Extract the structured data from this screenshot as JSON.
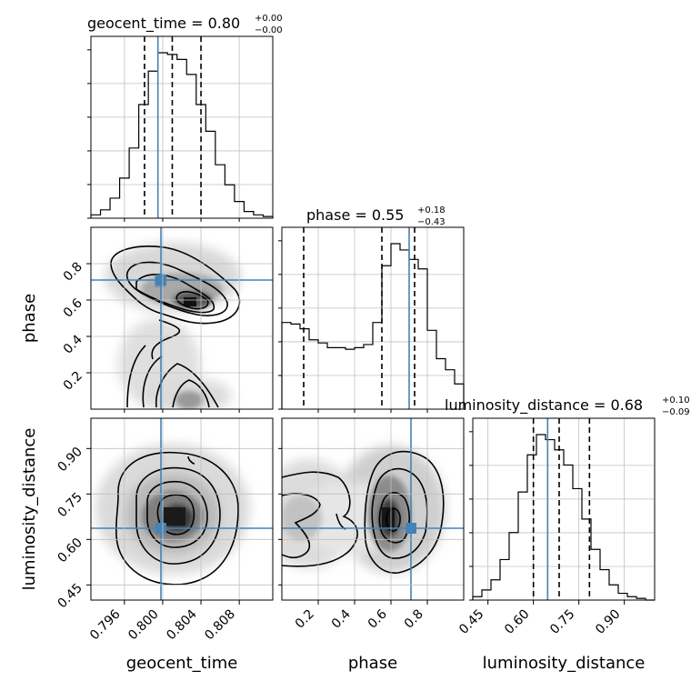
{
  "chart_data": {
    "type": "corner",
    "parameters": [
      "geocent_time",
      "phase",
      "luminosity_distance"
    ],
    "truths": {
      "geocent_time": 0.7995,
      "phase": 0.7,
      "luminosity_distance": 0.647
    },
    "colors": {
      "truth": "#4682b4",
      "line": "#000000",
      "grid": "#c0c0c0"
    },
    "panels": [
      {
        "type": "histogram",
        "param": "geocent_time",
        "title": {
          "name": "geocent_time",
          "median": "0.80",
          "plus": "+0.00",
          "minus": "−0.00"
        },
        "xlim": [
          0.7925,
          0.8115
        ],
        "counts": [
          2,
          5,
          12,
          24,
          42,
          68,
          88,
          99,
          98,
          95,
          86,
          68,
          52,
          32,
          20,
          10,
          4,
          2,
          1
        ],
        "quantiles": [
          0.7981,
          0.801,
          0.804
        ],
        "truth": 0.7995
      },
      {
        "type": "histogram",
        "param": "phase",
        "title": {
          "name": "phase",
          "median": "0.55",
          "plus": "+0.18",
          "minus": "−0.43"
        },
        "xlim": [
          0.0,
          1.0
        ],
        "counts": [
          55,
          54,
          51,
          44,
          42,
          39,
          39,
          38,
          39,
          41,
          55,
          91,
          105,
          101,
          95,
          89,
          50,
          32,
          25,
          16
        ],
        "quantiles": [
          0.12,
          0.55,
          0.73
        ],
        "truth": 0.7
      },
      {
        "type": "histogram",
        "param": "luminosity_distance",
        "title": {
          "name": "luminosity_distance",
          "median": "0.68",
          "plus": "+0.10",
          "minus": "−0.09"
        },
        "xlim": [
          0.4,
          1.0
        ],
        "counts": [
          2,
          6,
          12,
          24,
          40,
          64,
          86,
          98,
          95,
          89,
          80,
          66,
          48,
          30,
          18,
          9,
          4,
          2,
          1,
          0
        ],
        "quantiles": [
          0.6,
          0.685,
          0.785
        ],
        "truth": 0.647
      },
      {
        "type": "contour2d",
        "x": "geocent_time",
        "y": "phase",
        "xlim": [
          0.7925,
          0.8115
        ],
        "ylim": [
          0.0,
          1.0
        ],
        "truth": [
          0.7995,
          0.7
        ]
      },
      {
        "type": "contour2d",
        "x": "geocent_time",
        "y": "luminosity_distance",
        "xlim": [
          0.7925,
          0.8115
        ],
        "ylim": [
          0.4,
          1.0
        ],
        "truth": [
          0.7995,
          0.647
        ]
      },
      {
        "type": "contour2d",
        "x": "phase",
        "y": "luminosity_distance",
        "xlim": [
          0.0,
          1.0
        ],
        "ylim": [
          0.4,
          1.0
        ],
        "truth": [
          0.7,
          0.647
        ]
      }
    ],
    "ticks": {
      "geocent_time": [
        "0.796",
        "0.800",
        "0.804",
        "0.808"
      ],
      "phase": [
        "0.2",
        "0.4",
        "0.6",
        "0.8"
      ],
      "luminosity_distance": [
        "0.45",
        "0.60",
        "0.75",
        "0.90"
      ]
    },
    "axis_labels": {
      "x": [
        "geocent_time",
        "phase",
        "luminosity_distance"
      ],
      "y": [
        "phase",
        "luminosity_distance"
      ]
    }
  }
}
